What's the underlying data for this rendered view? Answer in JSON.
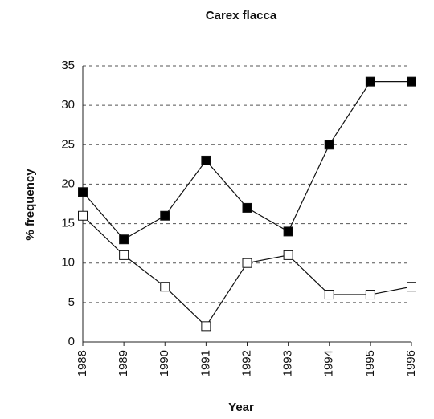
{
  "chart_data": {
    "type": "line",
    "title": "Carex flacca",
    "x_label": "Year",
    "y_label": "% frequency",
    "categories": [
      "1988",
      "1989",
      "1990",
      "1991",
      "1992",
      "1993",
      "1994",
      "1995",
      "1996"
    ],
    "series": [
      {
        "color": "#000000",
        "values": [
          19,
          13,
          16,
          23,
          17,
          14,
          25,
          33,
          33
        ]
      },
      {
        "color": "#ffffff",
        "values": [
          16,
          11,
          7,
          2,
          10,
          11,
          6,
          6,
          7
        ]
      }
    ],
    "ylim": [
      0,
      35
    ],
    "yticks": [
      0,
      5,
      10,
      15,
      20,
      25,
      30,
      35
    ],
    "grid": true
  }
}
